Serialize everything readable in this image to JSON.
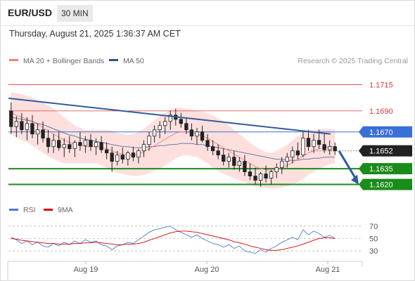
{
  "header": {
    "symbol": "EUR/USD",
    "timeframe": "30 MIN"
  },
  "timestamp": "Thursday, August 21, 2025 1:36:37 AM CET",
  "legend": {
    "ma20_bb": {
      "label": "MA 20 + Bollinger Bands",
      "color": "#f08080"
    },
    "ma50": {
      "label": "MA 50",
      "color": "#2f4f8f"
    }
  },
  "copyright": "Research © 2025 Trading Central",
  "rsi_legend": {
    "rsi": {
      "label": "RSI",
      "color": "#4a7bd8"
    },
    "ma9": {
      "label": "9MA",
      "color": "#dd0000"
    }
  },
  "colors": {
    "candle_up": "#ffffff",
    "candle_down": "#222222",
    "resistance": "#d73a3a",
    "support": "#1a8c1a",
    "trendline": "#2f5c9c",
    "pivot": "#3a6fd8",
    "bollinger_fill": "#fde0de"
  },
  "chart_data": {
    "type": "candlestick",
    "price_axis_min": 1.1605,
    "price_axis_max": 1.173,
    "x_labels": [
      "Aug 19",
      "Aug 20",
      "Aug 21"
    ],
    "levels": [
      {
        "value": "1.1715",
        "type": "resistance",
        "boxed": false
      },
      {
        "value": "1.1690",
        "type": "resistance",
        "boxed": false
      },
      {
        "value": "1.1670",
        "type": "pivot",
        "boxed": true
      },
      {
        "value": "1.1652",
        "type": "last",
        "boxed": true
      },
      {
        "value": "1.1635",
        "type": "support",
        "boxed": true
      },
      {
        "value": "1.1620",
        "type": "support",
        "boxed": true
      }
    ],
    "trendline": {
      "from_price": 1.1702,
      "to_price": 1.1668
    },
    "forecast_arrow": {
      "from_price": 1.1652,
      "to_price": 1.162
    },
    "ohlc": [
      [
        1.169,
        1.1698,
        1.1668,
        1.1675
      ],
      [
        1.1675,
        1.1685,
        1.1665,
        1.168
      ],
      [
        1.168,
        1.1688,
        1.1668,
        1.1672
      ],
      [
        1.1672,
        1.1684,
        1.1662,
        1.1678
      ],
      [
        1.1678,
        1.1686,
        1.1664,
        1.1668
      ],
      [
        1.1668,
        1.1678,
        1.1658,
        1.1672
      ],
      [
        1.1672,
        1.168,
        1.166,
        1.1664
      ],
      [
        1.1664,
        1.1672,
        1.165,
        1.1656
      ],
      [
        1.1656,
        1.1668,
        1.165,
        1.1662
      ],
      [
        1.1662,
        1.167,
        1.1652,
        1.1655
      ],
      [
        1.1655,
        1.1664,
        1.1646,
        1.1658
      ],
      [
        1.1658,
        1.1666,
        1.165,
        1.1654
      ],
      [
        1.1654,
        1.1662,
        1.1646,
        1.166
      ],
      [
        1.166,
        1.167,
        1.1652,
        1.1657
      ],
      [
        1.1657,
        1.1666,
        1.165,
        1.1662
      ],
      [
        1.1662,
        1.1668,
        1.1652,
        1.1656
      ],
      [
        1.1656,
        1.1664,
        1.1648,
        1.166
      ],
      [
        1.166,
        1.1666,
        1.165,
        1.1653
      ],
      [
        1.1653,
        1.166,
        1.1644,
        1.165
      ],
      [
        1.165,
        1.1656,
        1.1632,
        1.1642
      ],
      [
        1.1642,
        1.1652,
        1.1638,
        1.1648
      ],
      [
        1.1648,
        1.1655,
        1.164,
        1.1644
      ],
      [
        1.1644,
        1.1652,
        1.1638,
        1.165
      ],
      [
        1.165,
        1.1656,
        1.1642,
        1.1646
      ],
      [
        1.1646,
        1.1654,
        1.164,
        1.1652
      ],
      [
        1.1652,
        1.1662,
        1.1646,
        1.1658
      ],
      [
        1.1658,
        1.167,
        1.1652,
        1.1666
      ],
      [
        1.1666,
        1.1676,
        1.166,
        1.1672
      ],
      [
        1.1672,
        1.168,
        1.1664,
        1.1676
      ],
      [
        1.1676,
        1.1684,
        1.1668,
        1.168
      ],
      [
        1.168,
        1.169,
        1.1672,
        1.1686
      ],
      [
        1.1686,
        1.1692,
        1.1676,
        1.1682
      ],
      [
        1.1682,
        1.1688,
        1.1674,
        1.1678
      ],
      [
        1.1678,
        1.1684,
        1.1668,
        1.1672
      ],
      [
        1.1672,
        1.1678,
        1.1662,
        1.1666
      ],
      [
        1.1666,
        1.1674,
        1.1658,
        1.167
      ],
      [
        1.167,
        1.1676,
        1.166,
        1.1662
      ],
      [
        1.1662,
        1.1668,
        1.1652,
        1.1656
      ],
      [
        1.1656,
        1.1662,
        1.1648,
        1.1652
      ],
      [
        1.1652,
        1.1658,
        1.1644,
        1.1648
      ],
      [
        1.1648,
        1.1654,
        1.1638,
        1.1642
      ],
      [
        1.1642,
        1.165,
        1.1636,
        1.1646
      ],
      [
        1.1646,
        1.1652,
        1.1634,
        1.1638
      ],
      [
        1.1638,
        1.1646,
        1.1632,
        1.1642
      ],
      [
        1.1642,
        1.1648,
        1.1628,
        1.1632
      ],
      [
        1.1632,
        1.164,
        1.1624,
        1.1628
      ],
      [
        1.1628,
        1.1636,
        1.162,
        1.1624
      ],
      [
        1.1624,
        1.1632,
        1.1618,
        1.163
      ],
      [
        1.163,
        1.1638,
        1.1622,
        1.1626
      ],
      [
        1.1626,
        1.1634,
        1.162,
        1.1632
      ],
      [
        1.1632,
        1.164,
        1.1626,
        1.1636
      ],
      [
        1.1636,
        1.1646,
        1.163,
        1.1642
      ],
      [
        1.1642,
        1.165,
        1.1636,
        1.1646
      ],
      [
        1.1646,
        1.1656,
        1.164,
        1.1652
      ],
      [
        1.1652,
        1.166,
        1.1644,
        1.1648
      ],
      [
        1.1648,
        1.167,
        1.1646,
        1.1664
      ],
      [
        1.1664,
        1.1672,
        1.1652,
        1.1656
      ],
      [
        1.1656,
        1.1668,
        1.165,
        1.1662
      ],
      [
        1.1662,
        1.1672,
        1.1654,
        1.1658
      ],
      [
        1.1658,
        1.1668,
        1.165,
        1.1653
      ],
      [
        1.1653,
        1.1662,
        1.1648,
        1.1656
      ],
      [
        1.1656,
        1.166,
        1.1648,
        1.1652
      ]
    ],
    "ma20": [
      1.1688,
      1.1686,
      1.1684,
      1.1682,
      1.168,
      1.1677,
      1.1674,
      1.1671,
      1.1668,
      1.1665,
      1.1662,
      1.166,
      1.1658,
      1.1657,
      1.1656,
      1.1656,
      1.1656,
      1.1655,
      1.1654,
      1.1652,
      1.165,
      1.1649,
      1.1648,
      1.1648,
      1.1649,
      1.1651,
      1.1654,
      1.1657,
      1.166,
      1.1663,
      1.1666,
      1.1669,
      1.167,
      1.167,
      1.1669,
      1.1668,
      1.1666,
      1.1664,
      1.1661,
      1.1658,
      1.1655,
      1.1652,
      1.1649,
      1.1646,
      1.1643,
      1.164,
      1.1637,
      1.1635,
      1.1634,
      1.1633,
      1.1634,
      1.1636,
      1.1638,
      1.1641,
      1.1644,
      1.1647,
      1.165,
      1.1652,
      1.1654,
      1.1655,
      1.1656,
      1.1656
    ],
    "ma50": [
      1.1684,
      1.1683,
      1.1682,
      1.1681,
      1.168,
      1.1678,
      1.1677,
      1.1675,
      1.1673,
      1.1671,
      1.1669,
      1.1667,
      1.1666,
      1.1664,
      1.1663,
      1.1662,
      1.1661,
      1.166,
      1.1659,
      1.1658,
      1.1657,
      1.1656,
      1.1656,
      1.1655,
      1.1655,
      1.1655,
      1.1656,
      1.1656,
      1.1657,
      1.1657,
      1.1658,
      1.1658,
      1.1659,
      1.1659,
      1.1659,
      1.1658,
      1.1658,
      1.1657,
      1.1656,
      1.1655,
      1.1654,
      1.1653,
      1.1652,
      1.1651,
      1.165,
      1.1649,
      1.1648,
      1.1647,
      1.1646,
      1.1645,
      1.1644,
      1.1644,
      1.1643,
      1.1643,
      1.1643,
      1.1644,
      1.1644,
      1.1645,
      1.1645,
      1.1646,
      1.1646,
      1.1646
    ],
    "bb_width": [
      0.002,
      0.0021,
      0.0022,
      0.0022,
      0.0023,
      0.0023,
      0.0024,
      0.0024,
      0.0024,
      0.0023,
      0.0022,
      0.002,
      0.0018,
      0.0017,
      0.0016,
      0.0016,
      0.0016,
      0.0017,
      0.0018,
      0.0019,
      0.0019,
      0.0019,
      0.0019,
      0.002,
      0.0021,
      0.0022,
      0.0023,
      0.0024,
      0.0025,
      0.0025,
      0.0025,
      0.0024,
      0.0023,
      0.0022,
      0.0022,
      0.0022,
      0.0023,
      0.0024,
      0.0025,
      0.0025,
      0.0025,
      0.0024,
      0.0023,
      0.0022,
      0.0021,
      0.002,
      0.0019,
      0.0018,
      0.0017,
      0.0017,
      0.0018,
      0.0019,
      0.002,
      0.0021,
      0.0022,
      0.0022,
      0.0021,
      0.002,
      0.0019,
      0.0018,
      0.0017,
      0.0016
    ],
    "rsi": {
      "levels": [
        "70",
        "50",
        "30"
      ],
      "range": [
        20,
        80
      ],
      "rsi_values": [
        52,
        48,
        42,
        46,
        40,
        44,
        38,
        36,
        42,
        38,
        44,
        40,
        46,
        42,
        48,
        44,
        46,
        40,
        38,
        32,
        38,
        40,
        44,
        42,
        48,
        54,
        60,
        64,
        66,
        68,
        70,
        64,
        60,
        56,
        52,
        56,
        50,
        46,
        42,
        40,
        36,
        40,
        34,
        38,
        30,
        28,
        26,
        32,
        28,
        34,
        38,
        44,
        48,
        52,
        48,
        64,
        56,
        62,
        58,
        52,
        55,
        50
      ],
      "ma9_values": [
        50,
        49,
        47,
        46,
        45,
        44,
        43,
        42,
        42,
        41,
        41,
        41,
        42,
        42,
        43,
        43,
        44,
        43,
        42,
        41,
        40,
        40,
        41,
        41,
        42,
        44,
        47,
        50,
        53,
        56,
        59,
        61,
        62,
        62,
        61,
        60,
        58,
        56,
        54,
        52,
        50,
        48,
        45,
        43,
        41,
        38,
        36,
        34,
        32,
        31,
        31,
        32,
        34,
        36,
        38,
        41,
        44,
        47,
        50,
        51,
        51,
        50
      ]
    }
  }
}
